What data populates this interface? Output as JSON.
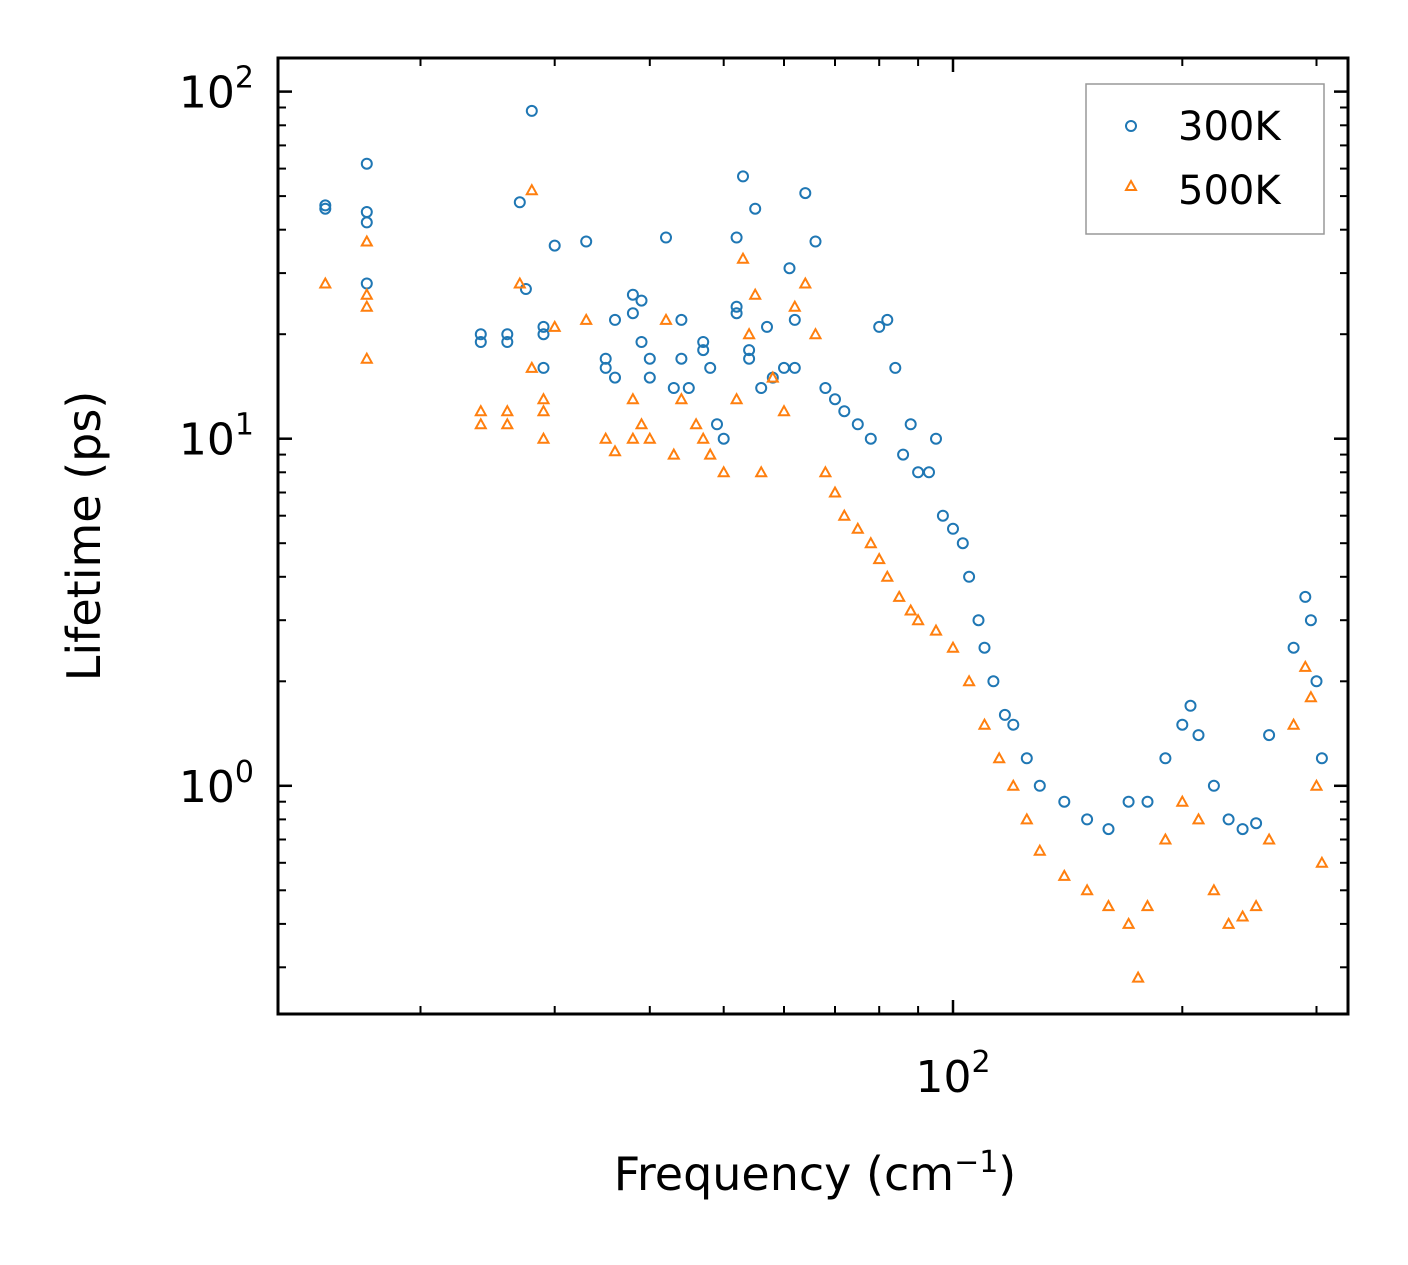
{
  "chart_data": {
    "type": "scatter",
    "xscale": "log",
    "yscale": "log",
    "xlim": [
      13,
      330
    ],
    "ylim": [
      0.22,
      125
    ],
    "xlabel": "Frequency (cm",
    "xlabel_sup": "−1",
    "xlabel_close": ")",
    "ylabel": "Lifetime (ps)",
    "x_ticks": [
      {
        "base": "10",
        "exp": "2",
        "value": 100
      }
    ],
    "y_ticks": [
      {
        "base": "10",
        "exp": "0",
        "value": 1
      },
      {
        "base": "10",
        "exp": "1",
        "value": 10
      },
      {
        "base": "10",
        "exp": "2",
        "value": 100
      }
    ],
    "legend_position": "top-right",
    "series": [
      {
        "name": "300K",
        "marker": "circle",
        "color": "#1f77b4",
        "points": [
          [
            15,
            46
          ],
          [
            15,
            47
          ],
          [
            17,
            28
          ],
          [
            17,
            42
          ],
          [
            17,
            45
          ],
          [
            17,
            62
          ],
          [
            24,
            19
          ],
          [
            24,
            20
          ],
          [
            26,
            19
          ],
          [
            26,
            20
          ],
          [
            27,
            48
          ],
          [
            27.5,
            27
          ],
          [
            28,
            88
          ],
          [
            29,
            16
          ],
          [
            29,
            20
          ],
          [
            29,
            21
          ],
          [
            30,
            36
          ],
          [
            33,
            37
          ],
          [
            35,
            17
          ],
          [
            35,
            16
          ],
          [
            36,
            15
          ],
          [
            36,
            22
          ],
          [
            38,
            26
          ],
          [
            38,
            23
          ],
          [
            39,
            25
          ],
          [
            39,
            19
          ],
          [
            40,
            17
          ],
          [
            40,
            15
          ],
          [
            42,
            38
          ],
          [
            43,
            14
          ],
          [
            44,
            22
          ],
          [
            44,
            17
          ],
          [
            45,
            14
          ],
          [
            47,
            19
          ],
          [
            47,
            18
          ],
          [
            48,
            16
          ],
          [
            49,
            11
          ],
          [
            50,
            10
          ],
          [
            52,
            24
          ],
          [
            52,
            23
          ],
          [
            52,
            38
          ],
          [
            53,
            57
          ],
          [
            54,
            17
          ],
          [
            54,
            18
          ],
          [
            55,
            46
          ],
          [
            56,
            14
          ],
          [
            57,
            21
          ],
          [
            58,
            15
          ],
          [
            60,
            16
          ],
          [
            61,
            31
          ],
          [
            62,
            22
          ],
          [
            62,
            16
          ],
          [
            64,
            51
          ],
          [
            66,
            37
          ],
          [
            68,
            14
          ],
          [
            70,
            13
          ],
          [
            72,
            12
          ],
          [
            75,
            11
          ],
          [
            78,
            10
          ],
          [
            80,
            21
          ],
          [
            82,
            22
          ],
          [
            84,
            16
          ],
          [
            86,
            9
          ],
          [
            88,
            11
          ],
          [
            90,
            8
          ],
          [
            93,
            8
          ],
          [
            95,
            10
          ],
          [
            97,
            6
          ],
          [
            100,
            5.5
          ],
          [
            103,
            5
          ],
          [
            105,
            4
          ],
          [
            108,
            3
          ],
          [
            110,
            2.5
          ],
          [
            113,
            2
          ],
          [
            117,
            1.6
          ],
          [
            120,
            1.5
          ],
          [
            125,
            1.2
          ],
          [
            130,
            1.0
          ],
          [
            140,
            0.9
          ],
          [
            150,
            0.8
          ],
          [
            160,
            0.75
          ],
          [
            170,
            0.9
          ],
          [
            180,
            0.9
          ],
          [
            190,
            1.2
          ],
          [
            200,
            1.5
          ],
          [
            205,
            1.7
          ],
          [
            210,
            1.4
          ],
          [
            220,
            1.0
          ],
          [
            230,
            0.8
          ],
          [
            240,
            0.75
          ],
          [
            250,
            0.78
          ],
          [
            260,
            1.4
          ],
          [
            280,
            2.5
          ],
          [
            290,
            3.5
          ],
          [
            295,
            3.0
          ],
          [
            300,
            2.0
          ],
          [
            305,
            1.2
          ]
        ]
      },
      {
        "name": "500K",
        "marker": "triangle",
        "color": "#ff7f0e",
        "points": [
          [
            15,
            28
          ],
          [
            17,
            17
          ],
          [
            17,
            24
          ],
          [
            17,
            26
          ],
          [
            17,
            37
          ],
          [
            24,
            11
          ],
          [
            24,
            12
          ],
          [
            26,
            11
          ],
          [
            26,
            12
          ],
          [
            27,
            28
          ],
          [
            28,
            52
          ],
          [
            28,
            16
          ],
          [
            29,
            10
          ],
          [
            29,
            12
          ],
          [
            29,
            13
          ],
          [
            30,
            21
          ],
          [
            33,
            22
          ],
          [
            35,
            10
          ],
          [
            36,
            9.2
          ],
          [
            38,
            13
          ],
          [
            38,
            10
          ],
          [
            39,
            11
          ],
          [
            40,
            10
          ],
          [
            42,
            22
          ],
          [
            43,
            9
          ],
          [
            44,
            13
          ],
          [
            46,
            11
          ],
          [
            47,
            10
          ],
          [
            48,
            9
          ],
          [
            50,
            8
          ],
          [
            52,
            13
          ],
          [
            53,
            33
          ],
          [
            54,
            20
          ],
          [
            55,
            26
          ],
          [
            56,
            8
          ],
          [
            58,
            15
          ],
          [
            60,
            12
          ],
          [
            62,
            24
          ],
          [
            64,
            28
          ],
          [
            66,
            20
          ],
          [
            68,
            8
          ],
          [
            70,
            7
          ],
          [
            72,
            6
          ],
          [
            75,
            5.5
          ],
          [
            78,
            5
          ],
          [
            80,
            4.5
          ],
          [
            82,
            4
          ],
          [
            85,
            3.5
          ],
          [
            88,
            3.2
          ],
          [
            90,
            3
          ],
          [
            95,
            2.8
          ],
          [
            100,
            2.5
          ],
          [
            105,
            2
          ],
          [
            110,
            1.5
          ],
          [
            115,
            1.2
          ],
          [
            120,
            1.0
          ],
          [
            125,
            0.8
          ],
          [
            130,
            0.65
          ],
          [
            140,
            0.55
          ],
          [
            150,
            0.5
          ],
          [
            160,
            0.45
          ],
          [
            170,
            0.4
          ],
          [
            175,
            0.28
          ],
          [
            180,
            0.45
          ],
          [
            190,
            0.7
          ],
          [
            200,
            0.9
          ],
          [
            210,
            0.8
          ],
          [
            220,
            0.5
          ],
          [
            230,
            0.4
          ],
          [
            240,
            0.42
          ],
          [
            250,
            0.45
          ],
          [
            260,
            0.7
          ],
          [
            280,
            1.5
          ],
          [
            290,
            2.2
          ],
          [
            295,
            1.8
          ],
          [
            300,
            1.0
          ],
          [
            305,
            0.6
          ]
        ]
      }
    ]
  }
}
